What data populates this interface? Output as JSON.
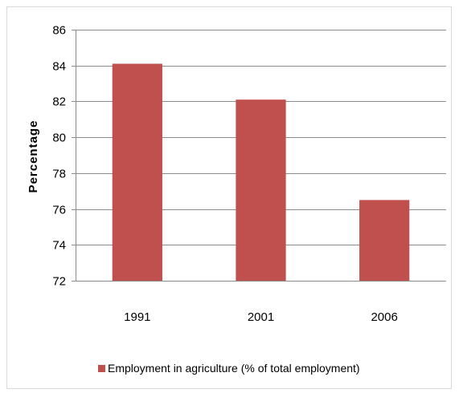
{
  "chart_data": {
    "type": "bar",
    "title": "",
    "xlabel": "",
    "ylabel": "Percentage",
    "categories": [
      "1991",
      "2001",
      "2006"
    ],
    "series": [
      {
        "name": "Employment in agriculture (% of total employment)",
        "values": [
          84.1,
          82.1,
          76.5
        ],
        "color": "#c0504d"
      }
    ],
    "ylim": [
      72,
      86
    ],
    "yticks": [
      72,
      74,
      76,
      78,
      80,
      82,
      84,
      86
    ],
    "grid": true,
    "legend_position": "bottom"
  }
}
